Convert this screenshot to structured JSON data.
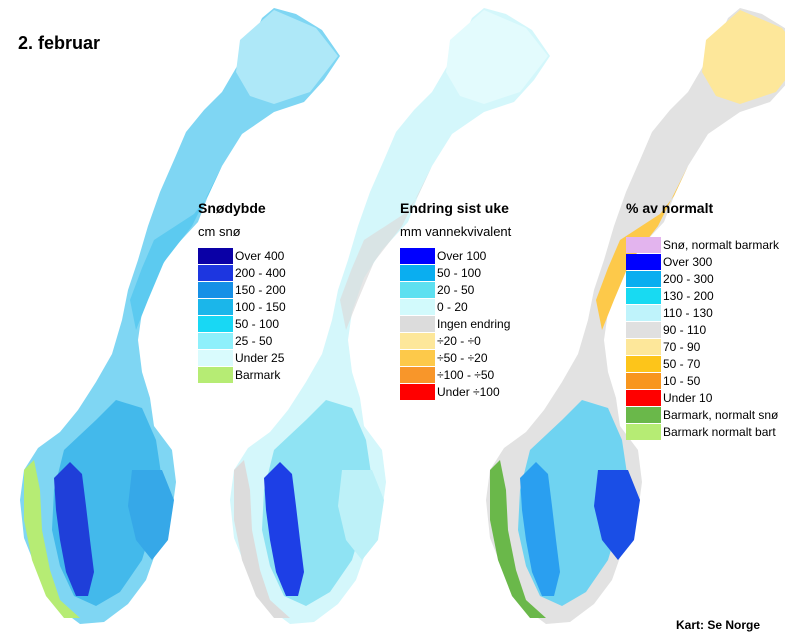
{
  "date_label": "2. februar",
  "credit": "Kart: Se Norge",
  "maps": [
    {
      "title": "Snødybde",
      "subtitle": "cm snø",
      "legend": [
        {
          "label": "Over 400",
          "color": "#0a00a6"
        },
        {
          "label": "200 - 400",
          "color": "#1d36e0"
        },
        {
          "label": "150 - 200",
          "color": "#1690e6"
        },
        {
          "label": "100 - 150",
          "color": "#1bb6ea"
        },
        {
          "label": "50 - 100",
          "color": "#18d8f4"
        },
        {
          "label": "25 - 50",
          "color": "#8ef0fb"
        },
        {
          "label": "Under 25",
          "color": "#d9fbfd"
        },
        {
          "label": "Barmark",
          "color": "#b6ec74"
        }
      ]
    },
    {
      "title": "Endring sist uke",
      "subtitle": "mm vannekvivalent",
      "legend": [
        {
          "label": "Over 100",
          "color": "#0000ff"
        },
        {
          "label": "50 - 100",
          "color": "#0aaef0"
        },
        {
          "label": "20 - 50",
          "color": "#5ee0f0"
        },
        {
          "label": "0 - 20",
          "color": "#d2fafc"
        },
        {
          "label": "Ingen endring",
          "color": "#dcdcdc"
        },
        {
          "label": "÷20 - ÷0",
          "color": "#fde79a"
        },
        {
          "label": "÷50 - ÷20",
          "color": "#fdc94a"
        },
        {
          "label": "÷100 - ÷50",
          "color": "#f8962a"
        },
        {
          "label": "Under ÷100",
          "color": "#ff0000"
        }
      ]
    },
    {
      "title": "% av normalt",
      "subtitle": "",
      "legend": [
        {
          "label": "Snø, normalt barmark",
          "color": "#e3b4ee"
        },
        {
          "label": "Over 300",
          "color": "#0000ff"
        },
        {
          "label": "200 - 300",
          "color": "#0aaef0"
        },
        {
          "label": "130 - 200",
          "color": "#18daf2"
        },
        {
          "label": "110 - 130",
          "color": "#bff3fb"
        },
        {
          "label": "90 - 110",
          "color": "#e0e0e0"
        },
        {
          "label": "70 - 90",
          "color": "#fde79a"
        },
        {
          "label": "50 - 70",
          "color": "#fdc51a"
        },
        {
          "label": "10 - 50",
          "color": "#f8961e"
        },
        {
          "label": "Under 10",
          "color": "#ff0000"
        },
        {
          "label": "Barmark, normalt snø",
          "color": "#6ab84a"
        },
        {
          "label": "Barmark normalt bart",
          "color": "#b6ec74"
        }
      ]
    }
  ]
}
